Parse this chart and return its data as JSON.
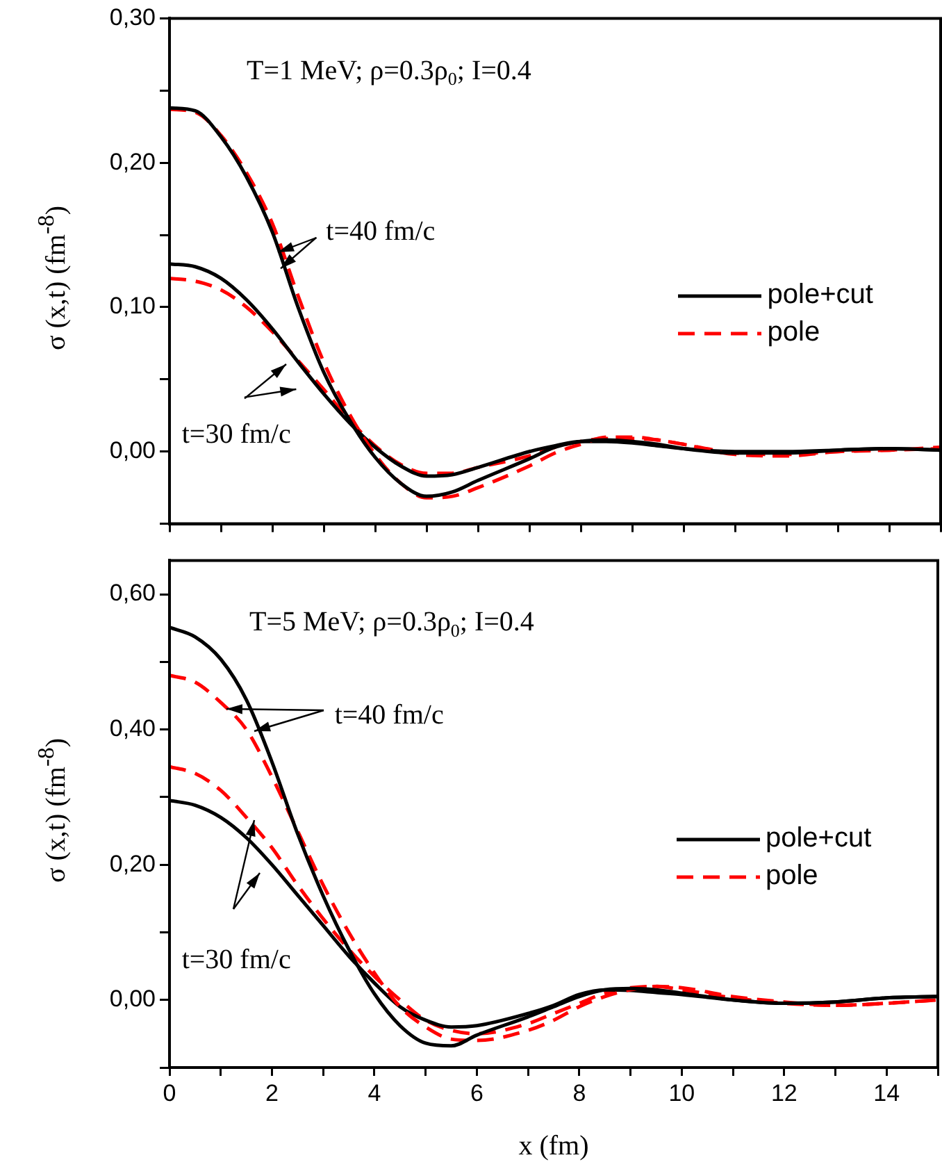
{
  "chart_data": [
    {
      "type": "line",
      "ylabel": "σ (x,t) (fm$^{-8}$)",
      "legend": "right",
      "tick_labels": "y",
      "annotations": [
        "T=1 MeV; ρ=0.3ρ$_{0}$; I=0.4",
        "t=40 fm/c",
        "t=30 fm/c"
      ],
      "x": [
        0,
        0.5,
        1,
        1.5,
        2,
        2.5,
        3,
        3.5,
        4,
        4.5,
        5,
        5.5,
        6,
        7,
        7.5,
        8,
        8.5,
        9,
        9.5,
        10,
        11,
        12,
        13,
        14,
        15
      ],
      "xlim": [
        0,
        15
      ],
      "xticks": [
        0,
        {
          "value": 1,
          "label": null
        },
        2,
        {
          "value": 3,
          "label": null
        },
        4,
        {
          "value": 5,
          "label": null
        },
        6,
        {
          "value": 7,
          "label": null
        },
        8,
        {
          "value": 9,
          "label": null
        },
        10,
        {
          "value": 11,
          "label": null
        },
        12,
        {
          "value": 13,
          "label": null
        },
        14,
        {
          "value": 15,
          "label": null
        }
      ],
      "ylim": [
        -0.05,
        0.3
      ],
      "yticks": [
        {
          "value": -0.05,
          "label": null
        },
        {
          "value": 0,
          "label": "0,00"
        },
        {
          "value": 0.05,
          "label": null
        },
        {
          "value": 0.1,
          "label": "0,10"
        },
        {
          "value": 0.15,
          "label": null
        },
        {
          "value": 0.2,
          "label": "0,20"
        },
        {
          "value": 0.25,
          "label": null
        },
        {
          "value": 0.3,
          "label": "0,30"
        }
      ],
      "series": [
        {
          "name": "pole+cut",
          "color": "#000000",
          "line_style": "solid",
          "values": [
            0.238,
            0.236,
            0.218,
            0.19,
            0.152,
            0.1,
            0.055,
            0.022,
            -0.004,
            -0.022,
            -0.031,
            -0.028,
            -0.02,
            -0.005,
            0.003,
            0.007,
            0.008,
            0.007,
            0.005,
            0.002,
            -0.001,
            -0.001,
            0.001,
            0.002,
            0.001
          ]
        },
        {
          "name": "pole",
          "color": "#ff0000",
          "line_style": "dashed",
          "values": [
            0.237,
            0.235,
            0.219,
            0.193,
            0.158,
            0.108,
            0.062,
            0.026,
            -0.002,
            -0.022,
            -0.032,
            -0.031,
            -0.025,
            -0.01,
            -0.001,
            0.005,
            0.01,
            0.01,
            0.008,
            0.005,
            -0.002,
            -0.003,
            0,
            0.001,
            0.002
          ]
        },
        {
          "color": "#000000",
          "line_style": "solid",
          "values": [
            0.13,
            0.128,
            0.12,
            0.105,
            0.085,
            0.062,
            0.04,
            0.02,
            0.003,
            -0.01,
            -0.017,
            -0.016,
            -0.011,
            0,
            0.004,
            0.007,
            0.007,
            0.006,
            0.004,
            0.002,
            0,
            0,
            0.001,
            0.002,
            0.001
          ]
        },
        {
          "color": "#ff0000",
          "line_style": "dashed",
          "values": [
            0.12,
            0.118,
            0.112,
            0.1,
            0.083,
            0.063,
            0.043,
            0.022,
            0.004,
            -0.009,
            -0.015,
            -0.015,
            -0.011,
            -0.003,
            0.003,
            0.007,
            0.009,
            0.009,
            0.008,
            0.005,
            -0.001,
            -0.002,
            0,
            0.001,
            0.003
          ]
        }
      ]
    },
    {
      "type": "line",
      "xlabel": "x (fm)",
      "ylabel": "σ (x,t) (fm$^{-8}$)",
      "legend": "right",
      "annotations": [
        "T=5 MeV; ρ=0.3ρ$_{0}$; I=0.4",
        {
          "text": "t=40 fm/c",
          "x": 1.65,
          "y": 0.397
        },
        {
          "text": "t=30 fm/c",
          "x": 1.65,
          "y": 0.265
        }
      ],
      "x": [
        0,
        0.5,
        1,
        1.5,
        2,
        2.5,
        3,
        3.5,
        4,
        4.5,
        5,
        5.5,
        6,
        7,
        7.5,
        8,
        8.5,
        9,
        9.5,
        10,
        11,
        12,
        13,
        14,
        15
      ],
      "xlim": [
        0,
        15
      ],
      "xticks": [
        0,
        {
          "value": 1,
          "label": null
        },
        2,
        {
          "value": 3,
          "label": null
        },
        4,
        {
          "value": 5,
          "label": null
        },
        6,
        {
          "value": 7,
          "label": null
        },
        8,
        {
          "value": 9,
          "label": null
        },
        10,
        {
          "value": 11,
          "label": null
        },
        12,
        {
          "value": 13,
          "label": null
        },
        14,
        {
          "value": 15,
          "label": null
        }
      ],
      "ylim": [
        -0.1,
        0.65
      ],
      "yticks": [
        {
          "value": -0.1,
          "label": null
        },
        {
          "value": 0,
          "label": "0,00"
        },
        {
          "value": 0.1,
          "label": null
        },
        {
          "value": 0.2,
          "label": "0,20"
        },
        {
          "value": 0.3,
          "label": null
        },
        {
          "value": 0.4,
          "label": "0,40"
        },
        {
          "value": 0.5,
          "label": null
        },
        {
          "value": 0.6,
          "label": "0,60"
        }
      ],
      "series": [
        {
          "name": "pole+cut",
          "color": "#000000",
          "line_style": "solid",
          "values": [
            0.551,
            0.537,
            0.504,
            0.444,
            0.352,
            0.246,
            0.154,
            0.075,
            0.009,
            -0.038,
            -0.064,
            -0.068,
            -0.052,
            -0.025,
            -0.01,
            0.005,
            0.015,
            0.017,
            0.015,
            0.01,
            0,
            -0.005,
            -0.003,
            0.003,
            0.005
          ]
        },
        {
          "name": "pole",
          "color": "#ff0000",
          "line_style": "dashed",
          "values": [
            0.48,
            0.47,
            0.44,
            0.4,
            0.33,
            0.25,
            0.17,
            0.1,
            0.04,
            -0.01,
            -0.04,
            -0.058,
            -0.06,
            -0.045,
            -0.03,
            -0.01,
            0.005,
            0.015,
            0.02,
            0.018,
            0.005,
            -0.003,
            -0.008,
            -0.005,
            0
          ]
        },
        {
          "color": "#000000",
          "line_style": "solid",
          "values": [
            0.295,
            0.288,
            0.27,
            0.24,
            0.2,
            0.155,
            0.11,
            0.065,
            0.025,
            -0.01,
            -0.03,
            -0.04,
            -0.038,
            -0.02,
            -0.008,
            0.008,
            0.015,
            0.014,
            0.011,
            0.008,
            0,
            -0.005,
            -0.003,
            0.003,
            0.005
          ]
        },
        {
          "color": "#ff0000",
          "line_style": "dashed",
          "values": [
            0.345,
            0.335,
            0.31,
            0.27,
            0.225,
            0.17,
            0.12,
            0.075,
            0.035,
            0,
            -0.03,
            -0.045,
            -0.05,
            -0.035,
            -0.02,
            -0.005,
            0.01,
            0.018,
            0.02,
            0.015,
            0.003,
            -0.005,
            -0.008,
            -0.005,
            0
          ]
        }
      ]
    }
  ]
}
